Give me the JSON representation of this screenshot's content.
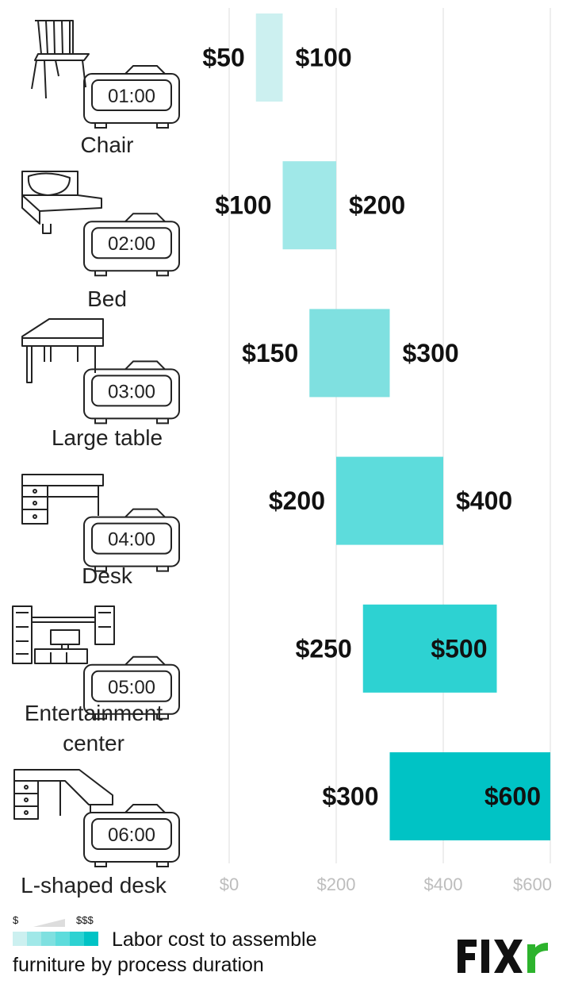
{
  "chart_data": {
    "type": "bar",
    "orientation": "horizontal-floating-range",
    "categories": [
      {
        "label": "Chair",
        "duration": "01:00",
        "low": 50,
        "high": 100,
        "low_label": "$50",
        "high_label": "$100",
        "color": "#ccf0f0"
      },
      {
        "label": "Bed",
        "duration": "02:00",
        "low": 100,
        "high": 200,
        "low_label": "$100",
        "high_label": "$200",
        "color": "#a0e8e8"
      },
      {
        "label": "Large table",
        "duration": "03:00",
        "low": 150,
        "high": 300,
        "low_label": "$150",
        "high_label": "$300",
        "color": "#7fe0e0"
      },
      {
        "label": "Desk",
        "duration": "04:00",
        "low": 200,
        "high": 400,
        "low_label": "$200",
        "high_label": "$400",
        "color": "#5ddcdc"
      },
      {
        "label": "Entertainment center",
        "duration": "05:00",
        "low": 250,
        "high": 500,
        "low_label": "$250",
        "high_label": "$500",
        "color": "#2dd2d2"
      },
      {
        "label": "L-shaped desk",
        "duration": "06:00",
        "low": 300,
        "high": 600,
        "low_label": "$300",
        "high_label": "$600",
        "color": "#00c3c5"
      }
    ],
    "x_ticks": [
      {
        "value": 0,
        "label": "$0"
      },
      {
        "value": 200,
        "label": "$200"
      },
      {
        "value": 400,
        "label": "$400"
      },
      {
        "value": 600,
        "label": "$600"
      }
    ],
    "xlim": [
      0,
      600
    ],
    "grid": true,
    "legend_placement": "bottom-left"
  },
  "labels": {
    "chair": "Chair",
    "bed": "Bed",
    "large_table": "Large table",
    "desk": "Desk",
    "entertainment_line1": "Entertainment",
    "entertainment_line2": "center",
    "l_shaped_desk": "L-shaped desk"
  },
  "legend": {
    "low_symbol": "$",
    "high_symbol": "$$$",
    "line1": "Labor cost to assemble",
    "line2": "furniture by process duration",
    "swatches": [
      "#ccf0f0",
      "#a0e8e8",
      "#7fe0e0",
      "#5ddcdc",
      "#2dd2d2",
      "#00c3c5"
    ]
  },
  "logo": {
    "text": "FIXr",
    "accent": "#2db32d"
  },
  "icons": [
    "chair-icon",
    "bed-icon",
    "table-icon",
    "desk-icon",
    "entertainment-center-icon",
    "l-shaped-desk-icon",
    "alarm-clock-icon"
  ]
}
